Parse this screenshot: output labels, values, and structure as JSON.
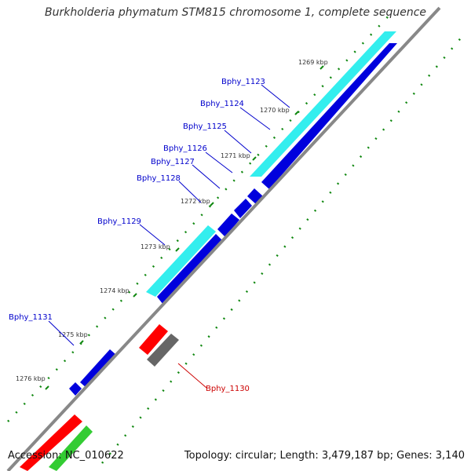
{
  "title": "Burkholderia phymatum STM815 chromosome 1, complete sequence",
  "footer": {
    "accession": "Accession: NC_010622",
    "summary": "Topology: circular; Length: 3,479,187 bp; Genes: 3,140"
  },
  "colors": {
    "cds_forward": "#0000dd",
    "cds_forward_highlight": "#33eeee",
    "cds_reverse": "#ff0000",
    "cds_other": "#666666",
    "cds_green": "#33cc33",
    "backbone": "#888888",
    "tick": "#118811",
    "label_blue": "#0000cc",
    "label_red": "#cc0000"
  },
  "ticks": [
    "1269 kbp",
    "1270 kbp",
    "1271 kbp",
    "1272 kbp",
    "1273 kbp",
    "1274 kbp",
    "1275 kbp",
    "1276 kbp"
  ],
  "genes": [
    {
      "label": "Bphy_1123",
      "color": "blue"
    },
    {
      "label": "Bphy_1124",
      "color": "blue"
    },
    {
      "label": "Bphy_1125",
      "color": "blue"
    },
    {
      "label": "Bphy_1126",
      "color": "blue"
    },
    {
      "label": "Bphy_1127",
      "color": "blue"
    },
    {
      "label": "Bphy_1128",
      "color": "blue"
    },
    {
      "label": "Bphy_1129",
      "color": "blue"
    },
    {
      "label": "Bphy_1130",
      "color": "red"
    },
    {
      "label": "Bphy_1131",
      "color": "blue"
    }
  ]
}
